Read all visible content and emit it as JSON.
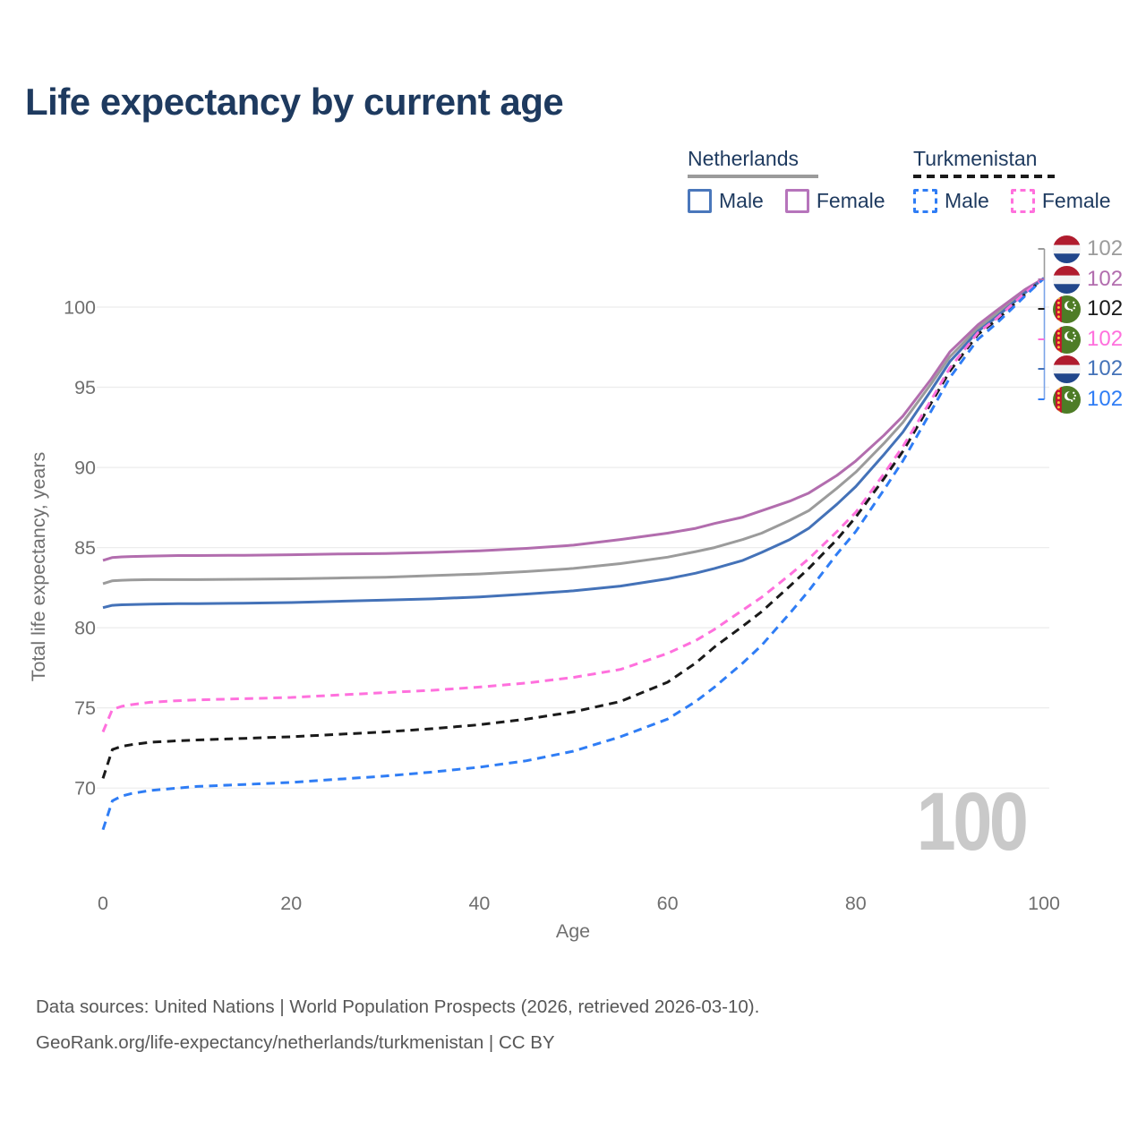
{
  "title": "Life expectancy by current age",
  "legend": {
    "groups": [
      {
        "label": "Netherlands",
        "line_style": "solid",
        "underline_color": "#9b9b9b",
        "items": [
          {
            "label": "Male",
            "color": "#4a77bb",
            "dashed": false
          },
          {
            "label": "Female",
            "color": "#b674bb",
            "dashed": false
          }
        ]
      },
      {
        "label": "Turkmenistan",
        "line_style": "dashed",
        "underline_color": "#1a1a1a",
        "items": [
          {
            "label": "Male",
            "color": "#2f7df5",
            "dashed": true
          },
          {
            "label": "Female",
            "color": "#ff70dd",
            "dashed": true
          }
        ]
      }
    ]
  },
  "chart_data": {
    "type": "line",
    "title": "Life expectancy by current age",
    "xlabel": "Age",
    "ylabel": "Total life expectancy, years",
    "x_ticks": [
      0,
      20,
      40,
      60,
      80,
      100
    ],
    "y_ticks": [
      70,
      75,
      80,
      85,
      90,
      95,
      100
    ],
    "xlim": [
      0,
      100
    ],
    "ylim": [
      66,
      103
    ],
    "grid": "horizontal",
    "legend_position": "top-right",
    "watermark": "100",
    "x": [
      0,
      1,
      2,
      3,
      5,
      8,
      10,
      15,
      20,
      25,
      30,
      35,
      40,
      45,
      50,
      55,
      60,
      63,
      65,
      68,
      70,
      73,
      75,
      78,
      80,
      83,
      85,
      88,
      90,
      93,
      95,
      98,
      100
    ],
    "series": [
      {
        "name": "Netherlands",
        "slug": "netherlands-both",
        "country": "Netherlands",
        "sex": "Both",
        "color": "#9b9b9b",
        "dashed": false,
        "flag": "nl",
        "end_row": 0,
        "end_label": "102",
        "values": [
          82.75,
          82.93,
          82.96,
          82.98,
          83.0,
          83.0,
          83.0,
          83.02,
          83.05,
          83.1,
          83.15,
          83.25,
          83.35,
          83.5,
          83.7,
          84.0,
          84.4,
          84.75,
          85.0,
          85.5,
          85.9,
          86.7,
          87.3,
          88.7,
          89.7,
          91.5,
          92.8,
          95.2,
          96.9,
          98.7,
          99.6,
          101.0,
          101.8
        ]
      },
      {
        "name": "Netherlands Female",
        "slug": "netherlands-female",
        "country": "Netherlands",
        "sex": "Female",
        "color": "#b26dae",
        "dashed": false,
        "flag": "nl",
        "end_row": 1,
        "end_label": "102",
        "values": [
          84.2,
          84.38,
          84.42,
          84.44,
          84.47,
          84.5,
          84.5,
          84.52,
          84.55,
          84.6,
          84.63,
          84.7,
          84.8,
          84.95,
          85.15,
          85.5,
          85.9,
          86.2,
          86.5,
          86.9,
          87.3,
          87.9,
          88.4,
          89.5,
          90.4,
          92.0,
          93.2,
          95.5,
          97.2,
          98.9,
          99.8,
          101.1,
          101.8
        ]
      },
      {
        "name": "Netherlands Male",
        "slug": "netherlands-male",
        "country": "Netherlands",
        "sex": "Male",
        "color": "#4472b8",
        "dashed": false,
        "flag": "nl",
        "end_row": 4,
        "end_label": "102",
        "values": [
          81.25,
          81.4,
          81.43,
          81.45,
          81.47,
          81.5,
          81.5,
          81.53,
          81.57,
          81.65,
          81.72,
          81.8,
          81.92,
          82.1,
          82.3,
          82.6,
          83.05,
          83.4,
          83.7,
          84.2,
          84.7,
          85.5,
          86.2,
          87.7,
          88.8,
          90.8,
          92.2,
          94.8,
          96.6,
          98.5,
          99.4,
          100.9,
          101.8
        ]
      },
      {
        "name": "Turkmenistan",
        "slug": "turkmenistan-both",
        "country": "Turkmenistan",
        "sex": "Both",
        "color": "#1a1a1a",
        "dashed": true,
        "flag": "tm",
        "end_row": 2,
        "end_label": "102",
        "values": [
          70.6,
          72.4,
          72.6,
          72.7,
          72.85,
          72.95,
          73.0,
          73.1,
          73.2,
          73.35,
          73.5,
          73.7,
          73.95,
          74.3,
          74.75,
          75.4,
          76.6,
          77.8,
          78.8,
          80.1,
          81.0,
          82.6,
          83.7,
          85.5,
          86.9,
          89.3,
          91.0,
          94.0,
          96.0,
          98.3,
          99.2,
          100.8,
          101.8
        ]
      },
      {
        "name": "Turkmenistan Female",
        "slug": "turkmenistan-female",
        "country": "Turkmenistan",
        "sex": "Female",
        "color": "#ff70dd",
        "dashed": true,
        "flag": "tm",
        "end_row": 3,
        "end_label": "102",
        "values": [
          73.5,
          74.9,
          75.1,
          75.2,
          75.35,
          75.45,
          75.5,
          75.57,
          75.65,
          75.8,
          75.95,
          76.1,
          76.3,
          76.55,
          76.9,
          77.4,
          78.4,
          79.2,
          79.9,
          81.1,
          81.9,
          83.3,
          84.3,
          86.0,
          87.2,
          89.6,
          91.3,
          94.2,
          96.2,
          98.4,
          99.3,
          100.9,
          101.8
        ]
      },
      {
        "name": "Turkmenistan Male",
        "slug": "turkmenistan-male",
        "country": "Turkmenistan",
        "sex": "Male",
        "color": "#2f7df5",
        "dashed": true,
        "flag": "tm",
        "end_row": 5,
        "end_label": "102",
        "values": [
          67.4,
          69.2,
          69.5,
          69.65,
          69.85,
          70.0,
          70.1,
          70.22,
          70.35,
          70.55,
          70.75,
          71.0,
          71.3,
          71.7,
          72.3,
          73.2,
          74.3,
          75.4,
          76.3,
          77.8,
          78.9,
          80.9,
          82.3,
          84.6,
          86.0,
          88.6,
          90.4,
          93.5,
          95.6,
          98.0,
          99.0,
          100.7,
          101.8
        ]
      }
    ]
  },
  "footer": {
    "line1": "Data sources: United Nations | World Population Prospects (2026, retrieved 2026-03-10).",
    "line2": "GeoRank.org/life-expectancy/netherlands/turkmenistan | CC BY"
  }
}
